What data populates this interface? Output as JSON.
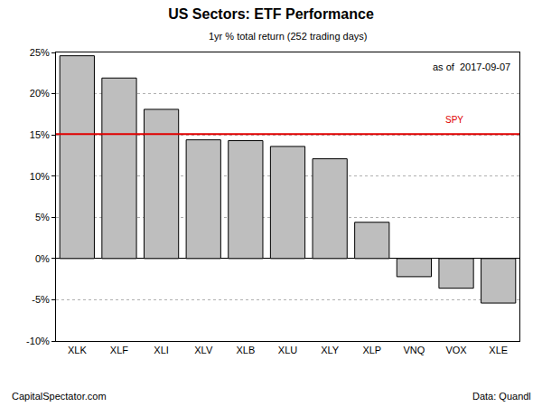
{
  "chart_data": {
    "type": "bar",
    "title": "US Sectors: ETF Performance",
    "subtitle": "1yr % total return (252 trading days)",
    "date_note": "as of  2017-09-07",
    "footer_left": "CapitalSpectator.com",
    "footer_right": "Data: Quandl",
    "categories": [
      "XLK",
      "XLF",
      "XLI",
      "XLV",
      "XLB",
      "XLU",
      "XLY",
      "XLP",
      "VNQ",
      "VOX",
      "XLE"
    ],
    "values": [
      24.6,
      21.9,
      18.1,
      14.4,
      14.3,
      13.6,
      12.1,
      4.4,
      -2.2,
      -3.6,
      -5.4
    ],
    "color": "#bebebe",
    "reference_line": {
      "name": "SPY",
      "value": 15.1,
      "color": "#e00000"
    },
    "ylim": [
      -10,
      25
    ],
    "yticks": [
      {
        "value": -10,
        "label": "-10%"
      },
      {
        "value": -5,
        "label": "-5%"
      },
      {
        "value": 0,
        "label": "0%"
      },
      {
        "value": 5,
        "label": "5%"
      },
      {
        "value": 10,
        "label": "10%"
      },
      {
        "value": 15,
        "label": "15%"
      },
      {
        "value": 20,
        "label": "20%"
      },
      {
        "value": 25,
        "label": "25%"
      }
    ],
    "grid": true
  }
}
